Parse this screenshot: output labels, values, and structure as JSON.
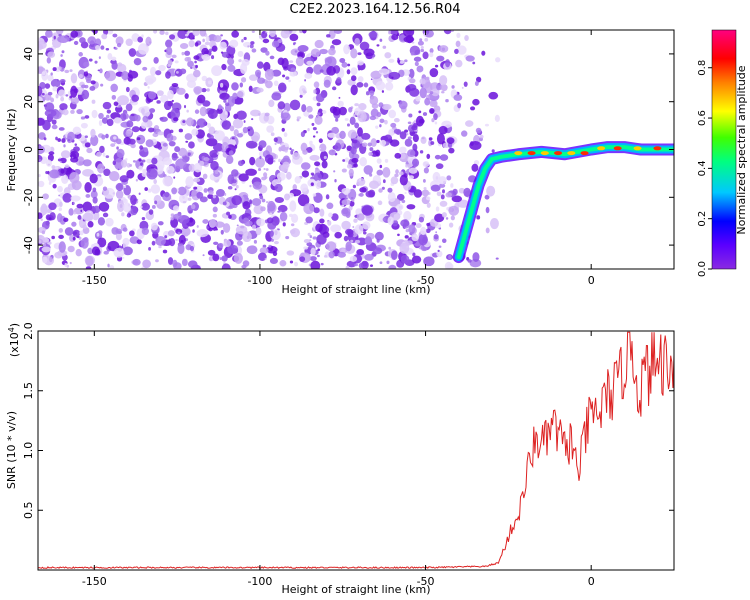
{
  "title": "C2E2.2023.164.12.56.R04",
  "colorbar": {
    "label": "Normalized spectral amplitude",
    "ticks": [
      "0.0",
      "0.2",
      "0.4",
      "0.6",
      "0.8"
    ]
  },
  "chart_data": [
    {
      "type": "heatmap",
      "xlabel": "Height of straight line (km)",
      "ylabel": "Frequency (Hz)",
      "xlim": [
        -167,
        25
      ],
      "ylim": [
        -50,
        50
      ],
      "xticks": [
        -150,
        -100,
        -50,
        0
      ],
      "yticks": [
        -40,
        -20,
        0,
        20,
        40
      ],
      "colorscale": "rainbow (purple→blue→cyan→green→yellow→orange→red)",
      "noise_region_x": [
        -167,
        -30
      ],
      "ridge": [
        {
          "x": -40,
          "y": -45
        },
        {
          "x": -38,
          "y": -35
        },
        {
          "x": -36,
          "y": -25
        },
        {
          "x": -34,
          "y": -15
        },
        {
          "x": -32,
          "y": -8
        },
        {
          "x": -30,
          "y": -4
        },
        {
          "x": -27,
          "y": -3
        },
        {
          "x": -22,
          "y": -2
        },
        {
          "x": -15,
          "y": -1
        },
        {
          "x": -8,
          "y": -2
        },
        {
          "x": 0,
          "y": 0
        },
        {
          "x": 5,
          "y": 1
        },
        {
          "x": 10,
          "y": 1
        },
        {
          "x": 15,
          "y": 0
        },
        {
          "x": 25,
          "y": 0
        }
      ]
    },
    {
      "type": "line",
      "xlabel": "Height of straight line (km)",
      "ylabel": "SNR (10 * v/v)",
      "yscale_label": "(x10",
      "yscale_exp": "4",
      "yscale_close": ")",
      "xlim": [
        -167,
        25
      ],
      "ylim": [
        0,
        2.0
      ],
      "xticks": [
        -150,
        -100,
        -50,
        0
      ],
      "yticks": [
        "0.5",
        "1.0",
        "1.5",
        "2.0"
      ],
      "line_color": "#dd2222",
      "series": [
        {
          "x": [
            -167,
            -100,
            -50,
            -32,
            -28,
            -26,
            -24,
            -22,
            -20,
            -18,
            -16,
            -14,
            -12,
            -10,
            -8,
            -6,
            -4,
            -2,
            0,
            2,
            4,
            6,
            8,
            10,
            12,
            14,
            16,
            18,
            20,
            22,
            25
          ],
          "values": [
            0.02,
            0.02,
            0.02,
            0.03,
            0.06,
            0.2,
            0.35,
            0.45,
            0.7,
            1.0,
            1.1,
            1.05,
            1.2,
            1.15,
            1.0,
            1.1,
            0.8,
            1.1,
            1.3,
            1.3,
            1.4,
            1.5,
            1.5,
            1.75,
            2.0,
            1.5,
            1.6,
            1.7,
            1.75,
            1.75,
            1.8
          ]
        }
      ]
    }
  ]
}
